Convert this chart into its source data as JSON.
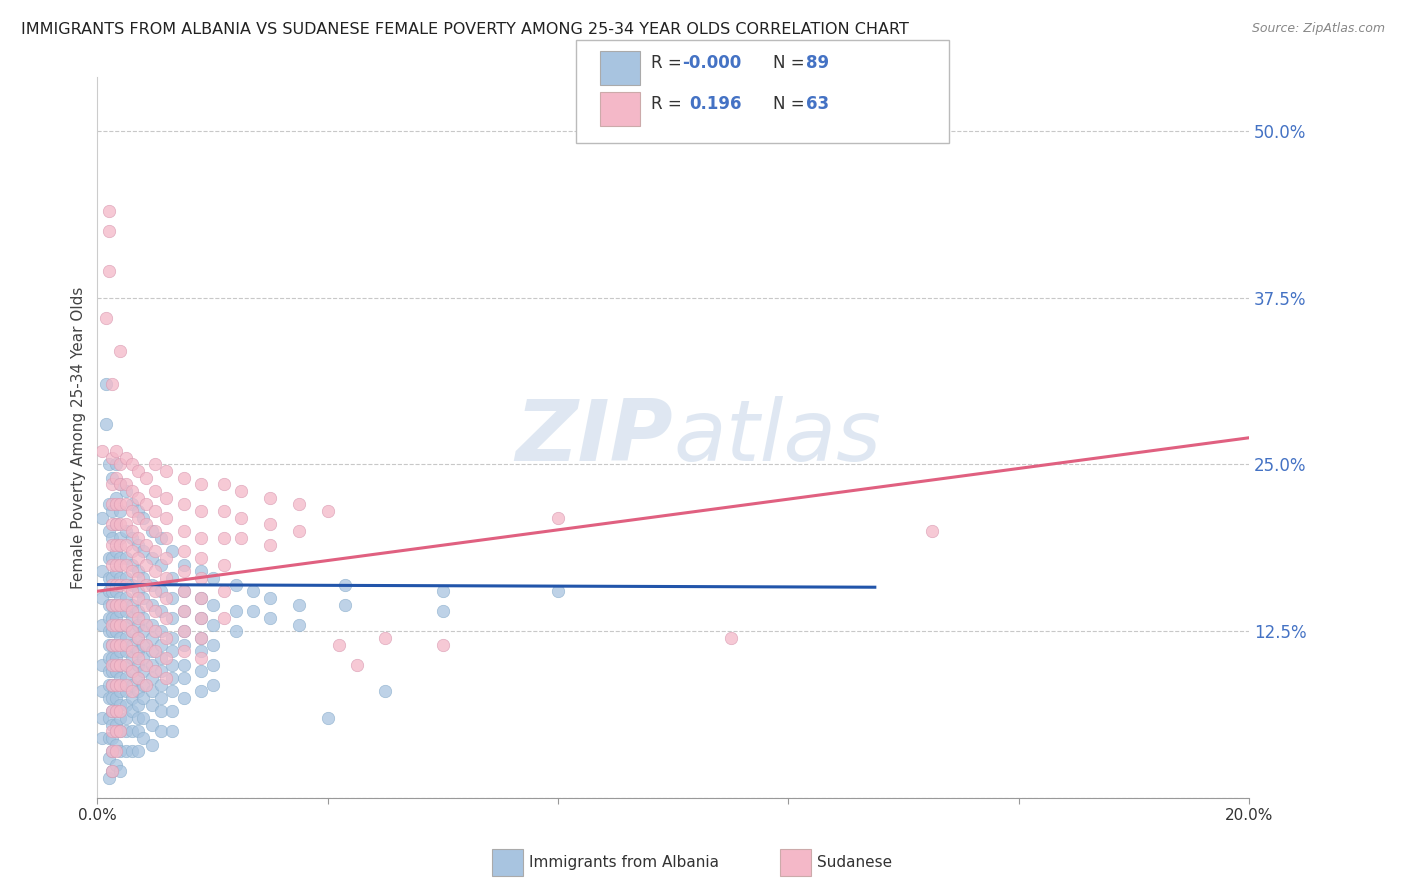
{
  "title": "IMMIGRANTS FROM ALBANIA VS SUDANESE FEMALE POVERTY AMONG 25-34 YEAR OLDS CORRELATION CHART",
  "source": "Source: ZipAtlas.com",
  "ylabel": "Female Poverty Among 25-34 Year Olds",
  "xlim": [
    0.0,
    0.2
  ],
  "ylim": [
    0.0,
    0.54
  ],
  "yticks": [
    0.0,
    0.125,
    0.25,
    0.375,
    0.5
  ],
  "ytick_labels": [
    "",
    "12.5%",
    "25.0%",
    "37.5%",
    "50.0%"
  ],
  "xticks": [
    0.0,
    0.04,
    0.08,
    0.12,
    0.16,
    0.2
  ],
  "xtick_labels": [
    "0.0%",
    "",
    "",
    "",
    "",
    "20.0%"
  ],
  "background_color": "#ffffff",
  "grid_color": "#c8c8c8",
  "legend_r1": "R = -0.000",
  "legend_n1": "N = 89",
  "legend_r2": "R =   0.196",
  "legend_n2": "N = 63",
  "albania_color": "#a8c4e0",
  "sudanese_color": "#f4b8c8",
  "albania_line_color": "#2255aa",
  "sudanese_line_color": "#e06080",
  "albania_scatter": [
    [
      0.0008,
      0.21
    ],
    [
      0.0008,
      0.17
    ],
    [
      0.0008,
      0.15
    ],
    [
      0.0008,
      0.13
    ],
    [
      0.0008,
      0.1
    ],
    [
      0.0008,
      0.08
    ],
    [
      0.0008,
      0.06
    ],
    [
      0.0008,
      0.045
    ],
    [
      0.0015,
      0.31
    ],
    [
      0.0015,
      0.28
    ],
    [
      0.002,
      0.25
    ],
    [
      0.002,
      0.22
    ],
    [
      0.002,
      0.2
    ],
    [
      0.002,
      0.18
    ],
    [
      0.002,
      0.165
    ],
    [
      0.002,
      0.155
    ],
    [
      0.002,
      0.145
    ],
    [
      0.002,
      0.135
    ],
    [
      0.002,
      0.125
    ],
    [
      0.002,
      0.115
    ],
    [
      0.002,
      0.105
    ],
    [
      0.002,
      0.095
    ],
    [
      0.002,
      0.085
    ],
    [
      0.002,
      0.075
    ],
    [
      0.002,
      0.06
    ],
    [
      0.002,
      0.045
    ],
    [
      0.002,
      0.03
    ],
    [
      0.002,
      0.015
    ],
    [
      0.0025,
      0.24
    ],
    [
      0.0025,
      0.215
    ],
    [
      0.0025,
      0.195
    ],
    [
      0.0025,
      0.18
    ],
    [
      0.0025,
      0.165
    ],
    [
      0.0025,
      0.155
    ],
    [
      0.0025,
      0.145
    ],
    [
      0.0025,
      0.135
    ],
    [
      0.0025,
      0.125
    ],
    [
      0.0025,
      0.115
    ],
    [
      0.0025,
      0.105
    ],
    [
      0.0025,
      0.095
    ],
    [
      0.0025,
      0.085
    ],
    [
      0.0025,
      0.075
    ],
    [
      0.0025,
      0.065
    ],
    [
      0.0025,
      0.055
    ],
    [
      0.0025,
      0.045
    ],
    [
      0.0025,
      0.035
    ],
    [
      0.0025,
      0.02
    ],
    [
      0.0032,
      0.25
    ],
    [
      0.0032,
      0.225
    ],
    [
      0.0032,
      0.205
    ],
    [
      0.0032,
      0.185
    ],
    [
      0.0032,
      0.17
    ],
    [
      0.0032,
      0.155
    ],
    [
      0.0032,
      0.145
    ],
    [
      0.0032,
      0.135
    ],
    [
      0.0032,
      0.125
    ],
    [
      0.0032,
      0.115
    ],
    [
      0.0032,
      0.105
    ],
    [
      0.0032,
      0.095
    ],
    [
      0.0032,
      0.085
    ],
    [
      0.0032,
      0.075
    ],
    [
      0.0032,
      0.065
    ],
    [
      0.0032,
      0.055
    ],
    [
      0.0032,
      0.04
    ],
    [
      0.0032,
      0.025
    ],
    [
      0.004,
      0.235
    ],
    [
      0.004,
      0.215
    ],
    [
      0.004,
      0.195
    ],
    [
      0.004,
      0.18
    ],
    [
      0.004,
      0.165
    ],
    [
      0.004,
      0.15
    ],
    [
      0.004,
      0.14
    ],
    [
      0.004,
      0.13
    ],
    [
      0.004,
      0.12
    ],
    [
      0.004,
      0.11
    ],
    [
      0.004,
      0.1
    ],
    [
      0.004,
      0.09
    ],
    [
      0.004,
      0.08
    ],
    [
      0.004,
      0.07
    ],
    [
      0.004,
      0.06
    ],
    [
      0.004,
      0.05
    ],
    [
      0.004,
      0.035
    ],
    [
      0.004,
      0.02
    ],
    [
      0.005,
      0.23
    ],
    [
      0.005,
      0.2
    ],
    [
      0.005,
      0.18
    ],
    [
      0.005,
      0.165
    ],
    [
      0.005,
      0.15
    ],
    [
      0.005,
      0.14
    ],
    [
      0.005,
      0.13
    ],
    [
      0.005,
      0.12
    ],
    [
      0.005,
      0.11
    ],
    [
      0.005,
      0.1
    ],
    [
      0.005,
      0.09
    ],
    [
      0.005,
      0.08
    ],
    [
      0.005,
      0.07
    ],
    [
      0.005,
      0.06
    ],
    [
      0.005,
      0.05
    ],
    [
      0.005,
      0.035
    ],
    [
      0.006,
      0.22
    ],
    [
      0.006,
      0.195
    ],
    [
      0.006,
      0.175
    ],
    [
      0.006,
      0.16
    ],
    [
      0.006,
      0.145
    ],
    [
      0.006,
      0.135
    ],
    [
      0.006,
      0.125
    ],
    [
      0.006,
      0.115
    ],
    [
      0.006,
      0.105
    ],
    [
      0.006,
      0.095
    ],
    [
      0.006,
      0.085
    ],
    [
      0.006,
      0.075
    ],
    [
      0.006,
      0.065
    ],
    [
      0.006,
      0.05
    ],
    [
      0.006,
      0.035
    ],
    [
      0.007,
      0.215
    ],
    [
      0.007,
      0.19
    ],
    [
      0.007,
      0.17
    ],
    [
      0.007,
      0.155
    ],
    [
      0.007,
      0.14
    ],
    [
      0.007,
      0.13
    ],
    [
      0.007,
      0.12
    ],
    [
      0.007,
      0.11
    ],
    [
      0.007,
      0.1
    ],
    [
      0.007,
      0.09
    ],
    [
      0.007,
      0.08
    ],
    [
      0.007,
      0.07
    ],
    [
      0.007,
      0.06
    ],
    [
      0.007,
      0.05
    ],
    [
      0.007,
      0.035
    ],
    [
      0.008,
      0.21
    ],
    [
      0.008,
      0.185
    ],
    [
      0.008,
      0.165
    ],
    [
      0.008,
      0.15
    ],
    [
      0.008,
      0.135
    ],
    [
      0.008,
      0.125
    ],
    [
      0.008,
      0.115
    ],
    [
      0.008,
      0.105
    ],
    [
      0.008,
      0.095
    ],
    [
      0.008,
      0.085
    ],
    [
      0.008,
      0.075
    ],
    [
      0.008,
      0.06
    ],
    [
      0.008,
      0.045
    ],
    [
      0.0095,
      0.2
    ],
    [
      0.0095,
      0.18
    ],
    [
      0.0095,
      0.16
    ],
    [
      0.0095,
      0.145
    ],
    [
      0.0095,
      0.13
    ],
    [
      0.0095,
      0.12
    ],
    [
      0.0095,
      0.11
    ],
    [
      0.0095,
      0.1
    ],
    [
      0.0095,
      0.09
    ],
    [
      0.0095,
      0.08
    ],
    [
      0.0095,
      0.07
    ],
    [
      0.0095,
      0.055
    ],
    [
      0.0095,
      0.04
    ],
    [
      0.011,
      0.195
    ],
    [
      0.011,
      0.175
    ],
    [
      0.011,
      0.155
    ],
    [
      0.011,
      0.14
    ],
    [
      0.011,
      0.125
    ],
    [
      0.011,
      0.115
    ],
    [
      0.011,
      0.105
    ],
    [
      0.011,
      0.095
    ],
    [
      0.011,
      0.085
    ],
    [
      0.011,
      0.075
    ],
    [
      0.011,
      0.065
    ],
    [
      0.011,
      0.05
    ],
    [
      0.013,
      0.185
    ],
    [
      0.013,
      0.165
    ],
    [
      0.013,
      0.15
    ],
    [
      0.013,
      0.135
    ],
    [
      0.013,
      0.12
    ],
    [
      0.013,
      0.11
    ],
    [
      0.013,
      0.1
    ],
    [
      0.013,
      0.09
    ],
    [
      0.013,
      0.08
    ],
    [
      0.013,
      0.065
    ],
    [
      0.013,
      0.05
    ],
    [
      0.015,
      0.175
    ],
    [
      0.015,
      0.155
    ],
    [
      0.015,
      0.14
    ],
    [
      0.015,
      0.125
    ],
    [
      0.015,
      0.115
    ],
    [
      0.015,
      0.1
    ],
    [
      0.015,
      0.09
    ],
    [
      0.015,
      0.075
    ],
    [
      0.018,
      0.17
    ],
    [
      0.018,
      0.15
    ],
    [
      0.018,
      0.135
    ],
    [
      0.018,
      0.12
    ],
    [
      0.018,
      0.11
    ],
    [
      0.018,
      0.095
    ],
    [
      0.018,
      0.08
    ],
    [
      0.02,
      0.165
    ],
    [
      0.02,
      0.145
    ],
    [
      0.02,
      0.13
    ],
    [
      0.02,
      0.115
    ],
    [
      0.02,
      0.1
    ],
    [
      0.02,
      0.085
    ],
    [
      0.024,
      0.16
    ],
    [
      0.024,
      0.14
    ],
    [
      0.024,
      0.125
    ],
    [
      0.027,
      0.155
    ],
    [
      0.027,
      0.14
    ],
    [
      0.03,
      0.15
    ],
    [
      0.03,
      0.135
    ],
    [
      0.035,
      0.145
    ],
    [
      0.035,
      0.13
    ],
    [
      0.04,
      0.06
    ],
    [
      0.043,
      0.16
    ],
    [
      0.043,
      0.145
    ],
    [
      0.05,
      0.08
    ],
    [
      0.06,
      0.155
    ],
    [
      0.06,
      0.14
    ],
    [
      0.08,
      0.155
    ]
  ],
  "sudanese_scatter": [
    [
      0.0008,
      0.26
    ],
    [
      0.0015,
      0.36
    ],
    [
      0.002,
      0.44
    ],
    [
      0.002,
      0.425
    ],
    [
      0.002,
      0.395
    ],
    [
      0.0025,
      0.31
    ],
    [
      0.0025,
      0.255
    ],
    [
      0.0025,
      0.235
    ],
    [
      0.0025,
      0.22
    ],
    [
      0.0025,
      0.205
    ],
    [
      0.0025,
      0.19
    ],
    [
      0.0025,
      0.175
    ],
    [
      0.0025,
      0.16
    ],
    [
      0.0025,
      0.145
    ],
    [
      0.0025,
      0.13
    ],
    [
      0.0025,
      0.115
    ],
    [
      0.0025,
      0.1
    ],
    [
      0.0025,
      0.085
    ],
    [
      0.0025,
      0.065
    ],
    [
      0.0025,
      0.05
    ],
    [
      0.0025,
      0.035
    ],
    [
      0.0025,
      0.02
    ],
    [
      0.0032,
      0.26
    ],
    [
      0.0032,
      0.24
    ],
    [
      0.0032,
      0.22
    ],
    [
      0.0032,
      0.205
    ],
    [
      0.0032,
      0.19
    ],
    [
      0.0032,
      0.175
    ],
    [
      0.0032,
      0.16
    ],
    [
      0.0032,
      0.145
    ],
    [
      0.0032,
      0.13
    ],
    [
      0.0032,
      0.115
    ],
    [
      0.0032,
      0.1
    ],
    [
      0.0032,
      0.085
    ],
    [
      0.0032,
      0.065
    ],
    [
      0.0032,
      0.05
    ],
    [
      0.0032,
      0.035
    ],
    [
      0.004,
      0.335
    ],
    [
      0.004,
      0.25
    ],
    [
      0.004,
      0.235
    ],
    [
      0.004,
      0.22
    ],
    [
      0.004,
      0.205
    ],
    [
      0.004,
      0.19
    ],
    [
      0.004,
      0.175
    ],
    [
      0.004,
      0.16
    ],
    [
      0.004,
      0.145
    ],
    [
      0.004,
      0.13
    ],
    [
      0.004,
      0.115
    ],
    [
      0.004,
      0.1
    ],
    [
      0.004,
      0.085
    ],
    [
      0.004,
      0.065
    ],
    [
      0.004,
      0.05
    ],
    [
      0.005,
      0.255
    ],
    [
      0.005,
      0.235
    ],
    [
      0.005,
      0.22
    ],
    [
      0.005,
      0.205
    ],
    [
      0.005,
      0.19
    ],
    [
      0.005,
      0.175
    ],
    [
      0.005,
      0.16
    ],
    [
      0.005,
      0.145
    ],
    [
      0.005,
      0.13
    ],
    [
      0.005,
      0.115
    ],
    [
      0.005,
      0.1
    ],
    [
      0.005,
      0.085
    ],
    [
      0.006,
      0.25
    ],
    [
      0.006,
      0.23
    ],
    [
      0.006,
      0.215
    ],
    [
      0.006,
      0.2
    ],
    [
      0.006,
      0.185
    ],
    [
      0.006,
      0.17
    ],
    [
      0.006,
      0.155
    ],
    [
      0.006,
      0.14
    ],
    [
      0.006,
      0.125
    ],
    [
      0.006,
      0.11
    ],
    [
      0.006,
      0.095
    ],
    [
      0.006,
      0.08
    ],
    [
      0.007,
      0.245
    ],
    [
      0.007,
      0.225
    ],
    [
      0.007,
      0.21
    ],
    [
      0.007,
      0.195
    ],
    [
      0.007,
      0.18
    ],
    [
      0.007,
      0.165
    ],
    [
      0.007,
      0.15
    ],
    [
      0.007,
      0.135
    ],
    [
      0.007,
      0.12
    ],
    [
      0.007,
      0.105
    ],
    [
      0.007,
      0.09
    ],
    [
      0.0085,
      0.24
    ],
    [
      0.0085,
      0.22
    ],
    [
      0.0085,
      0.205
    ],
    [
      0.0085,
      0.19
    ],
    [
      0.0085,
      0.175
    ],
    [
      0.0085,
      0.16
    ],
    [
      0.0085,
      0.145
    ],
    [
      0.0085,
      0.13
    ],
    [
      0.0085,
      0.115
    ],
    [
      0.0085,
      0.1
    ],
    [
      0.0085,
      0.085
    ],
    [
      0.01,
      0.25
    ],
    [
      0.01,
      0.23
    ],
    [
      0.01,
      0.215
    ],
    [
      0.01,
      0.2
    ],
    [
      0.01,
      0.185
    ],
    [
      0.01,
      0.17
    ],
    [
      0.01,
      0.155
    ],
    [
      0.01,
      0.14
    ],
    [
      0.01,
      0.125
    ],
    [
      0.01,
      0.11
    ],
    [
      0.01,
      0.095
    ],
    [
      0.012,
      0.245
    ],
    [
      0.012,
      0.225
    ],
    [
      0.012,
      0.21
    ],
    [
      0.012,
      0.195
    ],
    [
      0.012,
      0.18
    ],
    [
      0.012,
      0.165
    ],
    [
      0.012,
      0.15
    ],
    [
      0.012,
      0.135
    ],
    [
      0.012,
      0.12
    ],
    [
      0.012,
      0.105
    ],
    [
      0.012,
      0.09
    ],
    [
      0.015,
      0.24
    ],
    [
      0.015,
      0.22
    ],
    [
      0.015,
      0.2
    ],
    [
      0.015,
      0.185
    ],
    [
      0.015,
      0.17
    ],
    [
      0.015,
      0.155
    ],
    [
      0.015,
      0.14
    ],
    [
      0.015,
      0.125
    ],
    [
      0.015,
      0.11
    ],
    [
      0.018,
      0.235
    ],
    [
      0.018,
      0.215
    ],
    [
      0.018,
      0.195
    ],
    [
      0.018,
      0.18
    ],
    [
      0.018,
      0.165
    ],
    [
      0.018,
      0.15
    ],
    [
      0.018,
      0.135
    ],
    [
      0.018,
      0.12
    ],
    [
      0.018,
      0.105
    ],
    [
      0.022,
      0.235
    ],
    [
      0.022,
      0.215
    ],
    [
      0.022,
      0.195
    ],
    [
      0.022,
      0.175
    ],
    [
      0.022,
      0.155
    ],
    [
      0.022,
      0.135
    ],
    [
      0.025,
      0.23
    ],
    [
      0.025,
      0.21
    ],
    [
      0.025,
      0.195
    ],
    [
      0.03,
      0.225
    ],
    [
      0.03,
      0.205
    ],
    [
      0.03,
      0.19
    ],
    [
      0.035,
      0.22
    ],
    [
      0.035,
      0.2
    ],
    [
      0.04,
      0.215
    ],
    [
      0.042,
      0.115
    ],
    [
      0.045,
      0.1
    ],
    [
      0.05,
      0.12
    ],
    [
      0.06,
      0.115
    ],
    [
      0.08,
      0.21
    ],
    [
      0.11,
      0.12
    ],
    [
      0.145,
      0.2
    ]
  ],
  "albania_trendline": [
    [
      0.0,
      0.16
    ],
    [
      0.135,
      0.158
    ]
  ],
  "sudanese_trendline": [
    [
      0.0,
      0.155
    ],
    [
      0.2,
      0.27
    ]
  ]
}
